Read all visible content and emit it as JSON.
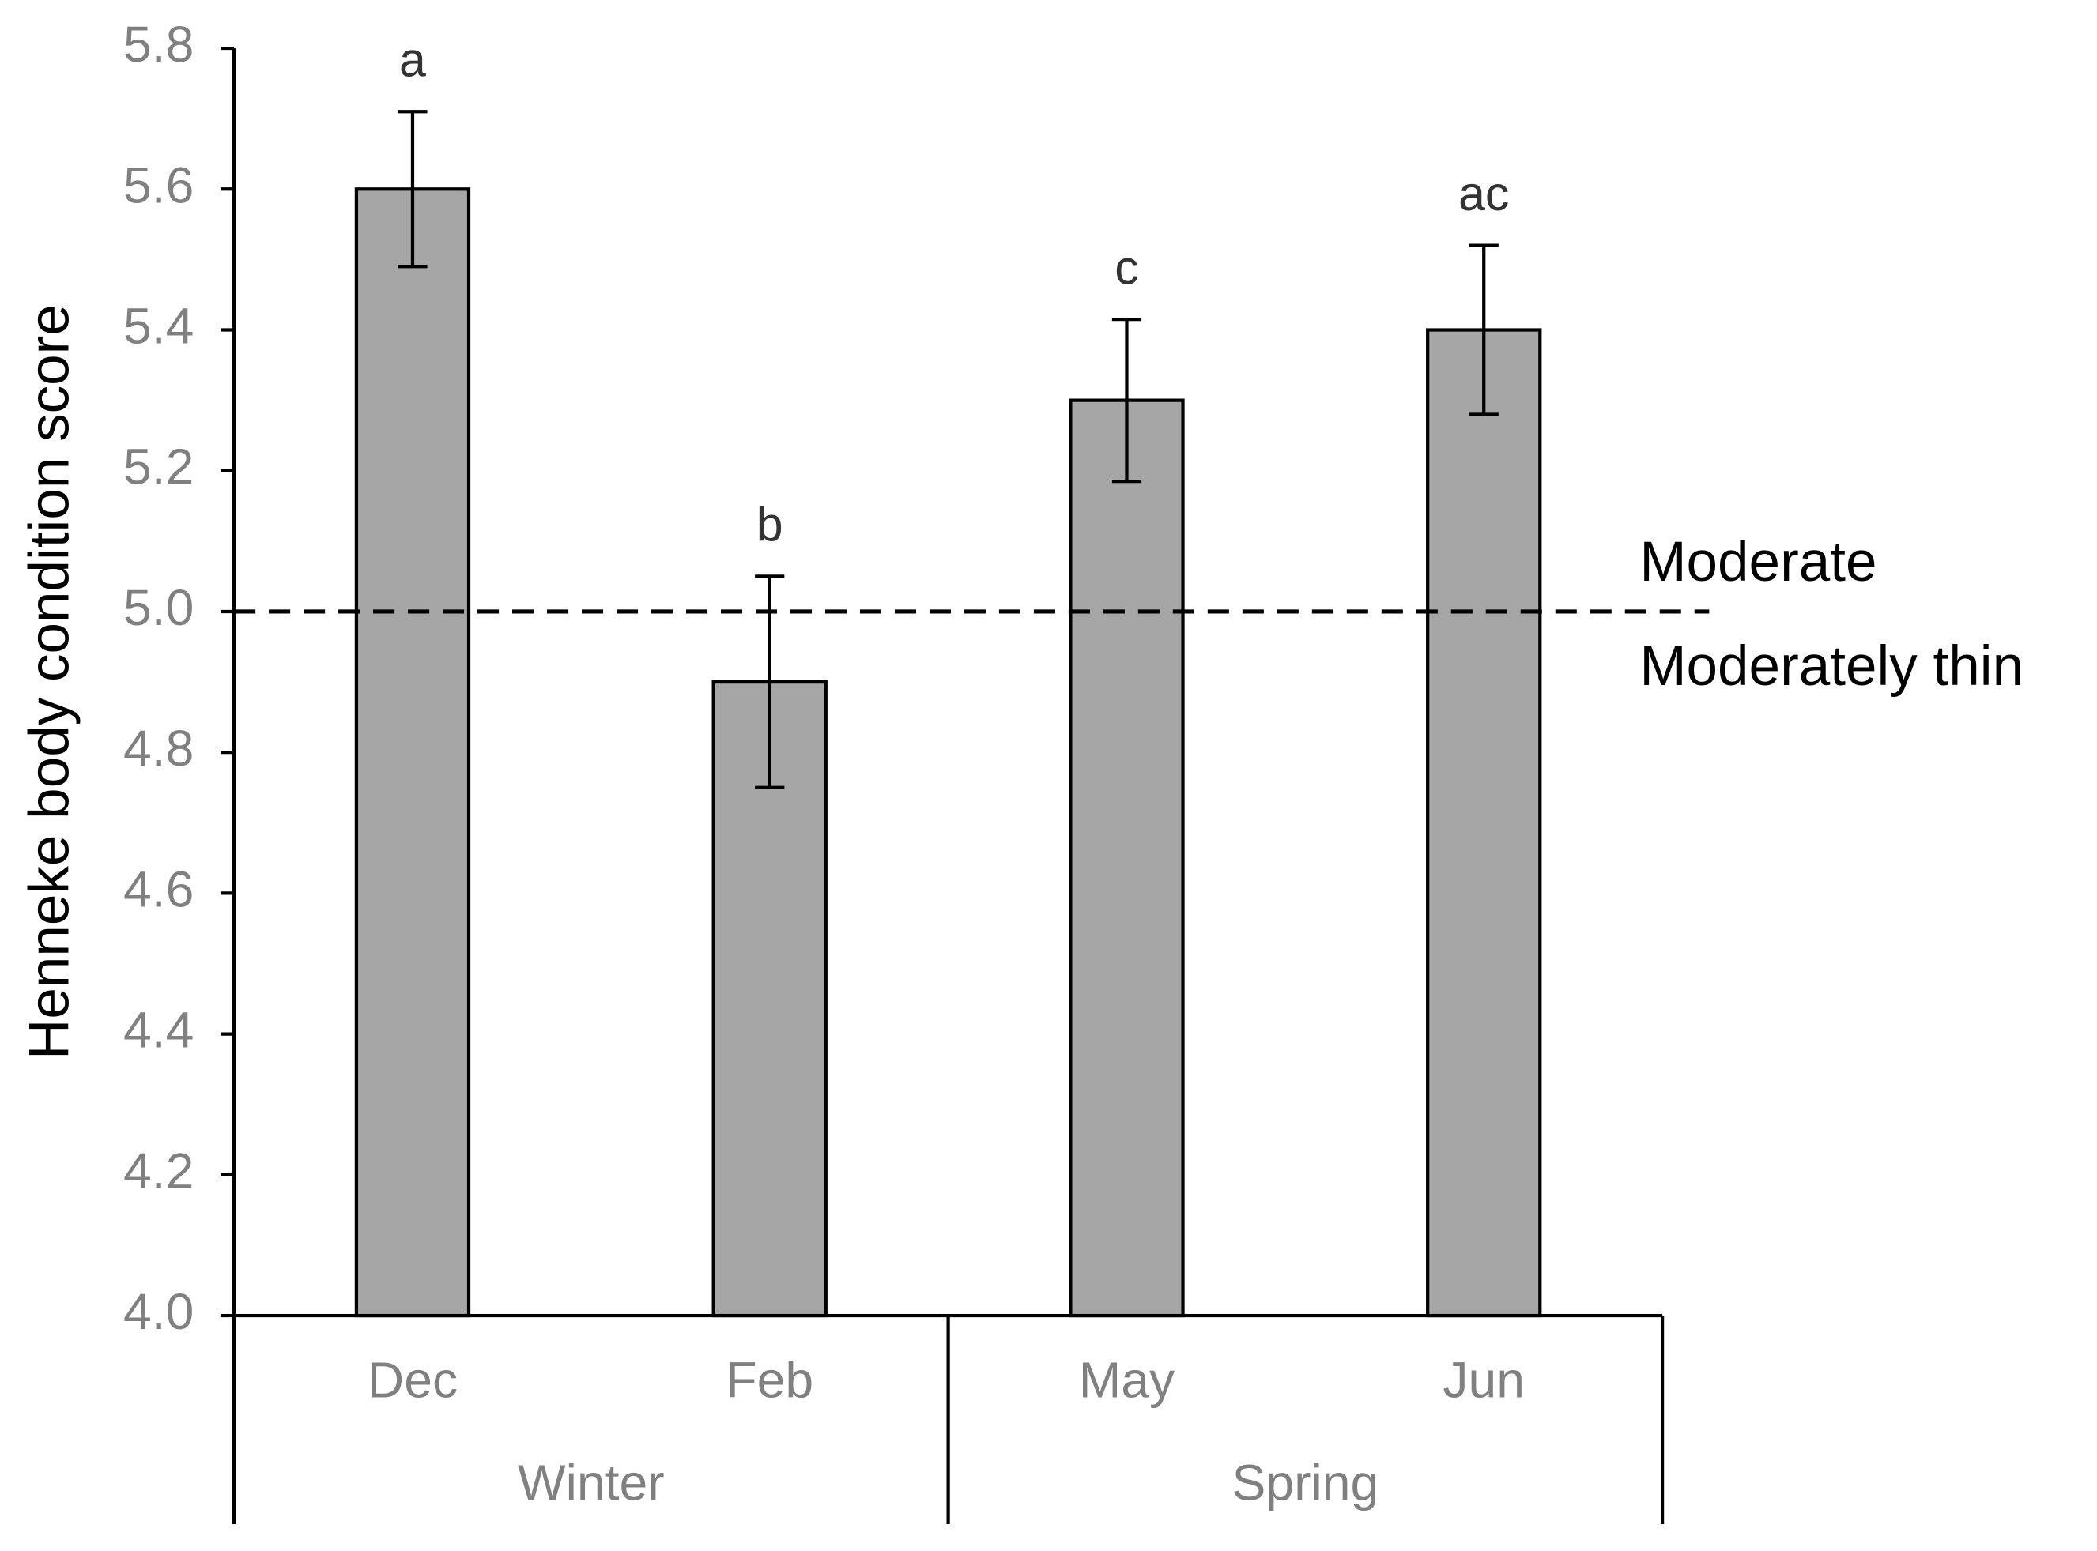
{
  "chart_data": {
    "type": "bar",
    "y_label": "Henneke body condition score",
    "groups": [
      {
        "name": "Winter",
        "categories": [
          "Dec",
          "Feb"
        ]
      },
      {
        "name": "Spring",
        "categories": [
          "May",
          "Jun"
        ]
      }
    ],
    "values": [
      5.6,
      4.9,
      5.3,
      5.4
    ],
    "errors": [
      0.11,
      0.15,
      0.115,
      0.12
    ],
    "significance": [
      "a",
      "b",
      "c",
      "ac"
    ],
    "color": "#a6a6a6",
    "ylim": [
      4.0,
      5.8
    ],
    "yticks": [
      {
        "value": 4.0,
        "label": "4.0"
      },
      4.2,
      4.4,
      4.6,
      4.8,
      {
        "value": 5.0,
        "label": "5.0"
      },
      5.2,
      5.4,
      5.6,
      5.8
    ],
    "reference_line": {
      "value": 5.0,
      "label_above": "Moderate",
      "label_below": "Moderately thin"
    }
  }
}
